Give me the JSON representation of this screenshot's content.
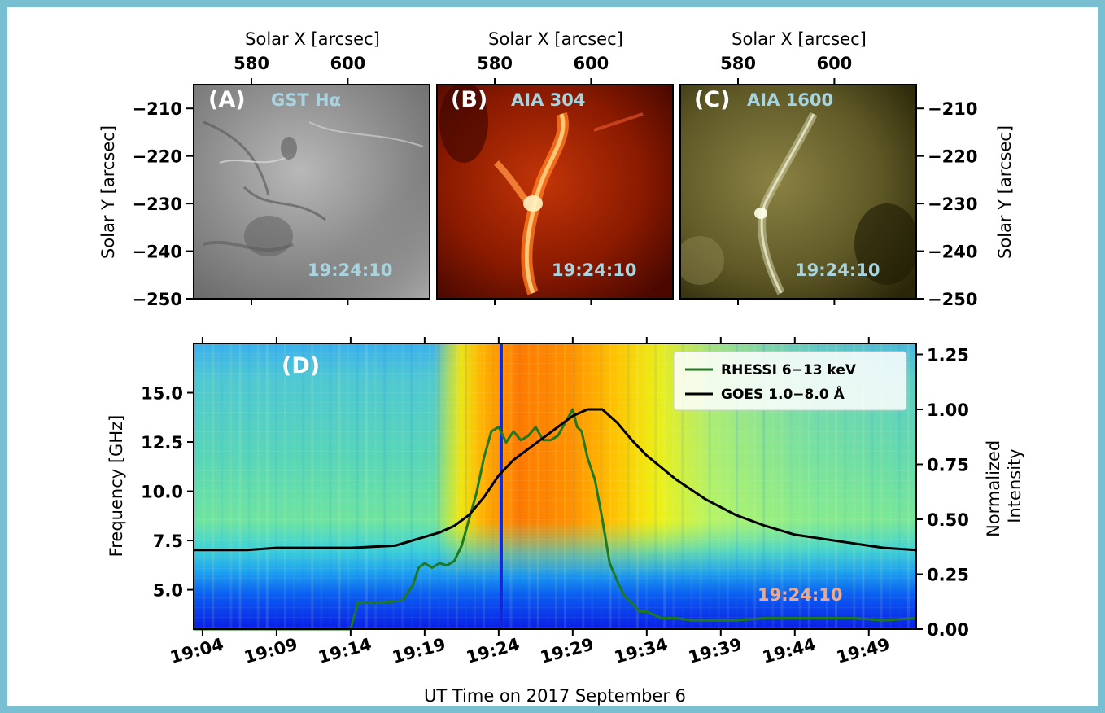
{
  "figure": {
    "panels": [
      {
        "label": "(A)",
        "channel": "GST Hα",
        "time": "19:24:10",
        "base_color": "#8a8a8a"
      },
      {
        "label": "(B)",
        "channel": "AIA 304",
        "time": "19:24:10",
        "base_color": "#7a1500"
      },
      {
        "label": "(C)",
        "channel": "AIA 1600",
        "time": "19:24:10",
        "base_color": "#5a5420"
      }
    ],
    "top_axis": {
      "xlabel": "Solar X [arcsec]",
      "xticks": [
        580,
        600
      ],
      "xlim": [
        568,
        617
      ],
      "ylabel_left": "Solar Y [arcsec]",
      "ylabel_right": "Solar Y [arcsec]",
      "yticks": [
        -210,
        -220,
        -230,
        -240,
        -250
      ],
      "ylim": [
        -250,
        -205
      ]
    },
    "panel_d": {
      "label": "(D)",
      "time": "19:24:10"
    }
  },
  "chart_data": {
    "type": "line",
    "description_units": "minutes after 19:00 UT",
    "xlabel": "UT Time on 2017 September 6",
    "xtick_labels": [
      "19:04",
      "19:09",
      "19:14",
      "19:19",
      "19:24",
      "19:29",
      "19:34",
      "19:39",
      "19:44",
      "19:49"
    ],
    "xtick_values": [
      4,
      9,
      14,
      19,
      24,
      29,
      34,
      39,
      44,
      49
    ],
    "xlim": [
      3.4,
      52.2
    ],
    "ylabel_left": "Frequency [GHz]",
    "yticks_left": [
      "5.0",
      "7.5",
      "10.0",
      "12.5",
      "15.0"
    ],
    "yticks_left_values": [
      5.0,
      7.5,
      10.0,
      12.5,
      15.0
    ],
    "ylim_left": [
      3.0,
      17.5
    ],
    "ylabel_right": "Normalized Intensity",
    "yticks_right": [
      "0.00",
      "0.25",
      "0.50",
      "0.75",
      "1.00",
      "1.25"
    ],
    "yticks_right_values": [
      0.0,
      0.25,
      0.5,
      0.75,
      1.0,
      1.25
    ],
    "ylim_right": [
      0.0,
      1.3
    ],
    "marker_time": 24.17,
    "legend_position": "top-right",
    "series": [
      {
        "name": "RHESSI 6−13 keV",
        "color": "#1f7a1f",
        "x": [
          3.4,
          13.0,
          14.0,
          14.2,
          14.5,
          16.0,
          17.5,
          18.2,
          18.6,
          19.0,
          19.5,
          20.0,
          20.5,
          21.0,
          21.5,
          22.0,
          22.5,
          23.0,
          23.5,
          24.0,
          24.5,
          25.0,
          25.5,
          26.0,
          26.5,
          27.0,
          27.5,
          28.0,
          28.5,
          29.0,
          29.3,
          29.6,
          30.0,
          30.5,
          31.0,
          31.5,
          32.0,
          32.5,
          33.0,
          33.5,
          34.0,
          35.0,
          36.0,
          37.0,
          38.0,
          40.0,
          42.0,
          45.0,
          48.0,
          50.0,
          52.2
        ],
        "y": [
          0.0,
          0.0,
          0.0,
          0.05,
          0.12,
          0.12,
          0.13,
          0.2,
          0.28,
          0.3,
          0.28,
          0.3,
          0.29,
          0.31,
          0.38,
          0.5,
          0.62,
          0.78,
          0.9,
          0.92,
          0.85,
          0.9,
          0.86,
          0.88,
          0.92,
          0.86,
          0.86,
          0.88,
          0.94,
          1.0,
          0.92,
          0.9,
          0.78,
          0.68,
          0.5,
          0.3,
          0.22,
          0.15,
          0.12,
          0.08,
          0.08,
          0.05,
          0.05,
          0.04,
          0.04,
          0.04,
          0.05,
          0.05,
          0.05,
          0.04,
          0.05
        ]
      },
      {
        "name": "GOES 1.0−8.0 Å",
        "color": "#000000",
        "x": [
          3.4,
          7.0,
          9.0,
          11.0,
          14.0,
          17.0,
          18.0,
          19.0,
          20.0,
          21.0,
          22.0,
          23.0,
          24.0,
          25.0,
          26.0,
          27.0,
          28.0,
          29.0,
          30.0,
          31.0,
          32.0,
          33.0,
          34.0,
          36.0,
          38.0,
          40.0,
          42.0,
          44.0,
          46.0,
          48.0,
          50.0,
          52.2
        ],
        "y": [
          0.36,
          0.36,
          0.37,
          0.37,
          0.37,
          0.38,
          0.4,
          0.42,
          0.44,
          0.47,
          0.52,
          0.6,
          0.7,
          0.77,
          0.82,
          0.87,
          0.92,
          0.97,
          1.0,
          1.0,
          0.94,
          0.86,
          0.79,
          0.68,
          0.59,
          0.52,
          0.47,
          0.43,
          0.41,
          0.39,
          0.37,
          0.36
        ]
      }
    ]
  }
}
